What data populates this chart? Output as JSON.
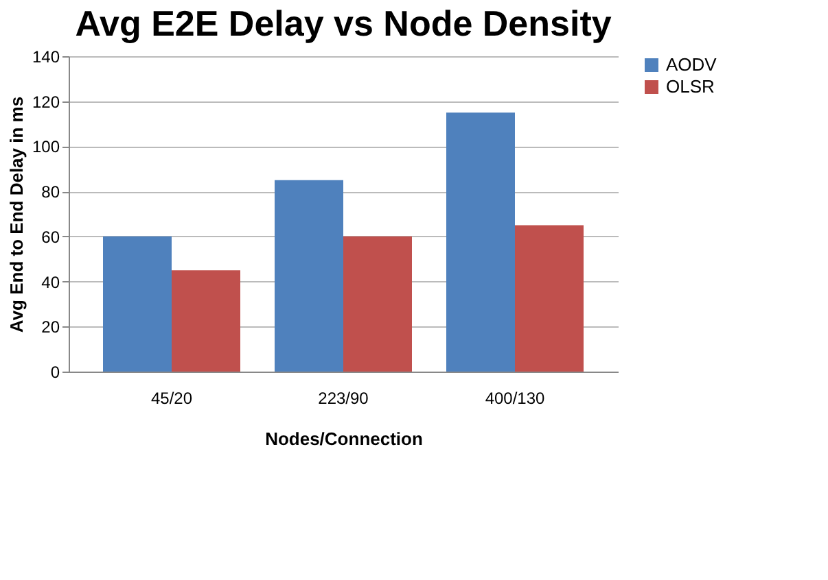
{
  "chart_data": {
    "type": "bar",
    "title": "Avg E2E Delay vs Node Density",
    "xlabel": "Nodes/Connection",
    "ylabel": "Avg End to End Delay in ms",
    "categories": [
      "45/20",
      "223/90",
      "400/130"
    ],
    "series": [
      {
        "name": "AODV",
        "color": "#4f81bd",
        "values": [
          60,
          85,
          115
        ]
      },
      {
        "name": "OLSR",
        "color": "#c0504d",
        "values": [
          45,
          60,
          65
        ]
      }
    ],
    "ylim": [
      0,
      140
    ],
    "yticks": [
      0,
      20,
      40,
      60,
      80,
      100,
      120,
      140
    ],
    "grid": "y",
    "legend": "right"
  }
}
